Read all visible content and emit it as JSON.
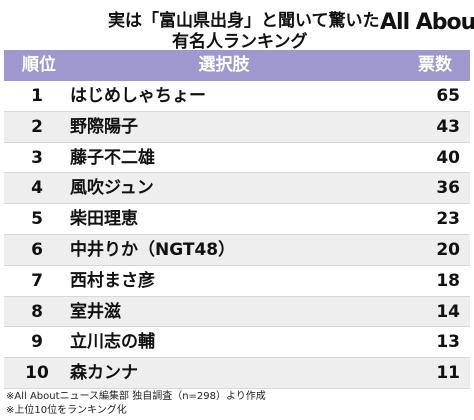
{
  "title": {
    "line1": "実は「富山県出身」と聞いて驚いた",
    "line2": "有名人ランキング"
  },
  "logo": "All About",
  "table": {
    "headers": {
      "rank": "順位",
      "choice": "選択肢",
      "votes": "票数"
    },
    "rows": [
      {
        "rank": "1",
        "name": "はじめしゃちょー",
        "votes": "65"
      },
      {
        "rank": "2",
        "name": "野際陽子",
        "votes": "43"
      },
      {
        "rank": "3",
        "name": "藤子不二雄",
        "votes": "40"
      },
      {
        "rank": "4",
        "name": "風吹ジュン",
        "votes": "36"
      },
      {
        "rank": "5",
        "name": "柴田理恵",
        "votes": "23"
      },
      {
        "rank": "6",
        "name": "中井りか（NGT48）",
        "votes": "20"
      },
      {
        "rank": "7",
        "name": "西村まさ彦",
        "votes": "18"
      },
      {
        "rank": "8",
        "name": "室井滋",
        "votes": "14"
      },
      {
        "rank": "9",
        "name": "立川志の輔",
        "votes": "13"
      },
      {
        "rank": "10",
        "name": "森カンナ",
        "votes": "11"
      }
    ]
  },
  "footer": {
    "note1": "※All Aboutニュース編集部 独自調査（n=298）より作成",
    "note2": "※上位10位をランキング化"
  },
  "colors": {
    "header_bg": "#9e98ce",
    "row_alt_bg": "#eeeeee"
  }
}
